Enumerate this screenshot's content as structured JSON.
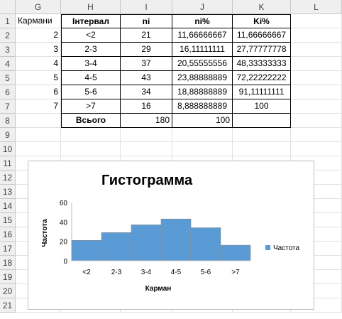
{
  "columns": [
    "G",
    "H",
    "I",
    "J",
    "K",
    "L"
  ],
  "rows": [
    "1",
    "2",
    "3",
    "4",
    "5",
    "6",
    "7",
    "8",
    "9",
    "10",
    "11",
    "12",
    "13",
    "14",
    "15",
    "16",
    "17",
    "18",
    "19",
    "20",
    "21"
  ],
  "table": {
    "g_header": "Кармани",
    "headers": [
      "Інтервал",
      "ni",
      "ni%",
      "Ki%"
    ],
    "rows": [
      {
        "g": "2",
        "interval": "<2",
        "ni": "21",
        "nip": "11,66666667",
        "kip": "11,66666667"
      },
      {
        "g": "3",
        "interval": "2-3",
        "ni": "29",
        "nip": "16,11111111",
        "kip": "27,77777778"
      },
      {
        "g": "4",
        "interval": "3-4",
        "ni": "37",
        "nip": "20,55555556",
        "kip": "48,33333333"
      },
      {
        "g": "5",
        "interval": "4-5",
        "ni": "43",
        "nip": "23,88888889",
        "kip": "72,22222222"
      },
      {
        "g": "6",
        "interval": "5-6",
        "ni": "34",
        "nip": "18,88888889",
        "kip": "91,11111111"
      },
      {
        "g": "7",
        "interval": ">7",
        "ni": "16",
        "nip": "8,888888889",
        "kip": "100"
      }
    ],
    "total_label": "Всього",
    "total_ni": "180",
    "total_nip": "100"
  },
  "chart_data": {
    "type": "bar",
    "title": "Гистограмма",
    "xlabel": "Карман",
    "ylabel": "Частота",
    "categories": [
      "<2",
      "2-3",
      "3-4",
      "4-5",
      "5-6",
      ">7"
    ],
    "series": [
      {
        "name": "Частота",
        "values": [
          21,
          29,
          37,
          43,
          34,
          16
        ]
      }
    ],
    "ylim": [
      0,
      60
    ],
    "yticks": [
      "0",
      "20",
      "40",
      "60"
    ],
    "legend": "right",
    "bar_color": "#5b9bd5",
    "grid": false
  }
}
